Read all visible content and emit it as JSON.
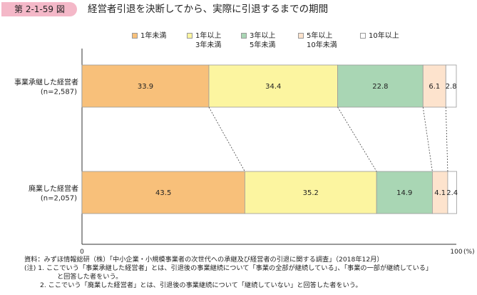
{
  "header": {
    "figure_number": "第 2-1-59 図",
    "title": "経営者引退を決断してから、実際に引退するまでの期間"
  },
  "chart_data": {
    "type": "bar",
    "orientation": "horizontal",
    "stacked": true,
    "title": "経営者引退を決断してから、実際に引退するまでの期間",
    "categories": [
      {
        "name": "事業承継した経営者",
        "n": "(n=2,587)"
      },
      {
        "name": "廃業した経営者",
        "n": "(n=2,057)"
      }
    ],
    "series": [
      {
        "name_lines": [
          "1年未満"
        ],
        "color": "#f8c07a",
        "values": [
          33.9,
          43.5
        ]
      },
      {
        "name_lines": [
          "1年以上",
          "3年未満"
        ],
        "color": "#fcf5a0",
        "values": [
          34.4,
          35.2
        ]
      },
      {
        "name_lines": [
          "3年以上",
          "5年未満"
        ],
        "color": "#a9d6b4",
        "values": [
          22.8,
          14.9
        ]
      },
      {
        "name_lines": [
          "5年以上",
          "10年未満"
        ],
        "color": "#fde3cd",
        "values": [
          6.1,
          4.1
        ]
      },
      {
        "name_lines": [
          "10年以上"
        ],
        "color": "#ffffff",
        "values": [
          2.8,
          2.4
        ]
      }
    ],
    "x_axis": {
      "min": 0,
      "max": 100,
      "tick_labels": [
        "0",
        "100"
      ],
      "unit": "(%)"
    },
    "legend_position": "top",
    "connector_lines": "dashed"
  },
  "footnotes": [
    "資料：みずほ情報総研（株）「中小企業・小規模事業者の次世代への承継及び経営者の引退に関する調査」（2018年12月）",
    "(注) 1. ここでいう「事業承継した経営者」とは、引退後の事業継続について「事業の全部が継続している」、「事業の一部が継続している」",
    "と回答した者をいう。",
    "2. ここでいう「廃業した経営者」とは、引退後の事業継続について「継続していない」と回答した者をいう。"
  ]
}
